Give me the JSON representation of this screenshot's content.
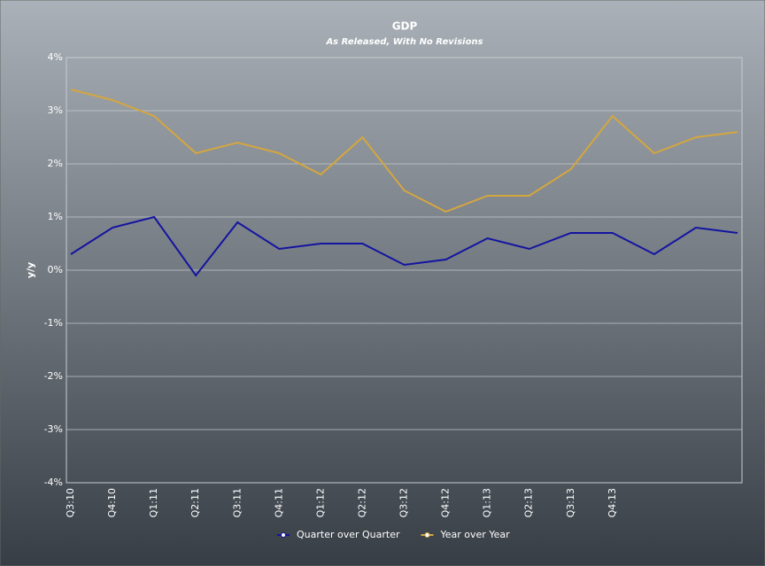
{
  "chart_data": {
    "type": "line",
    "title": "GDP",
    "subtitle": "As Released, With No Revisions",
    "y_label": "y/y",
    "categories": [
      "Q3:10",
      "Q4:10",
      "Q1:11",
      "Q2:11",
      "Q3:11",
      "Q4:11",
      "Q1:12",
      "Q2:12",
      "Q3:12",
      "Q4:12",
      "Q1:13",
      "Q2:13",
      "Q3:13",
      "Q4:13",
      null,
      null,
      null
    ],
    "series": [
      {
        "name": "Quarter over Quarter",
        "color": "#1414a0",
        "values": [
          0.3,
          0.8,
          1.0,
          -0.1,
          0.9,
          0.4,
          0.5,
          0.5,
          0.1,
          0.2,
          0.6,
          0.4,
          0.7,
          0.7,
          0.3,
          0.8,
          0.7
        ]
      },
      {
        "name": "Year over Year",
        "color": "#d4a640",
        "values": [
          3.4,
          3.2,
          2.9,
          2.2,
          2.4,
          2.2,
          1.8,
          2.5,
          1.5,
          1.1,
          1.4,
          1.4,
          1.9,
          2.9,
          2.2,
          2.5,
          2.6
        ]
      }
    ],
    "ylim": [
      -4,
      4
    ],
    "yticks": [
      {
        "value": -4,
        "label": "-4%"
      },
      {
        "value": -3,
        "label": "-3%"
      },
      {
        "value": -2,
        "label": "-2%"
      },
      {
        "value": -1,
        "label": "-1%"
      },
      {
        "value": 0,
        "label": "0%"
      },
      {
        "value": 1,
        "label": "1%"
      },
      {
        "value": 2,
        "label": "2%"
      },
      {
        "value": 3,
        "label": "3%"
      },
      {
        "value": 4,
        "label": "4%"
      }
    ],
    "grid": true,
    "legend": "bottom"
  }
}
